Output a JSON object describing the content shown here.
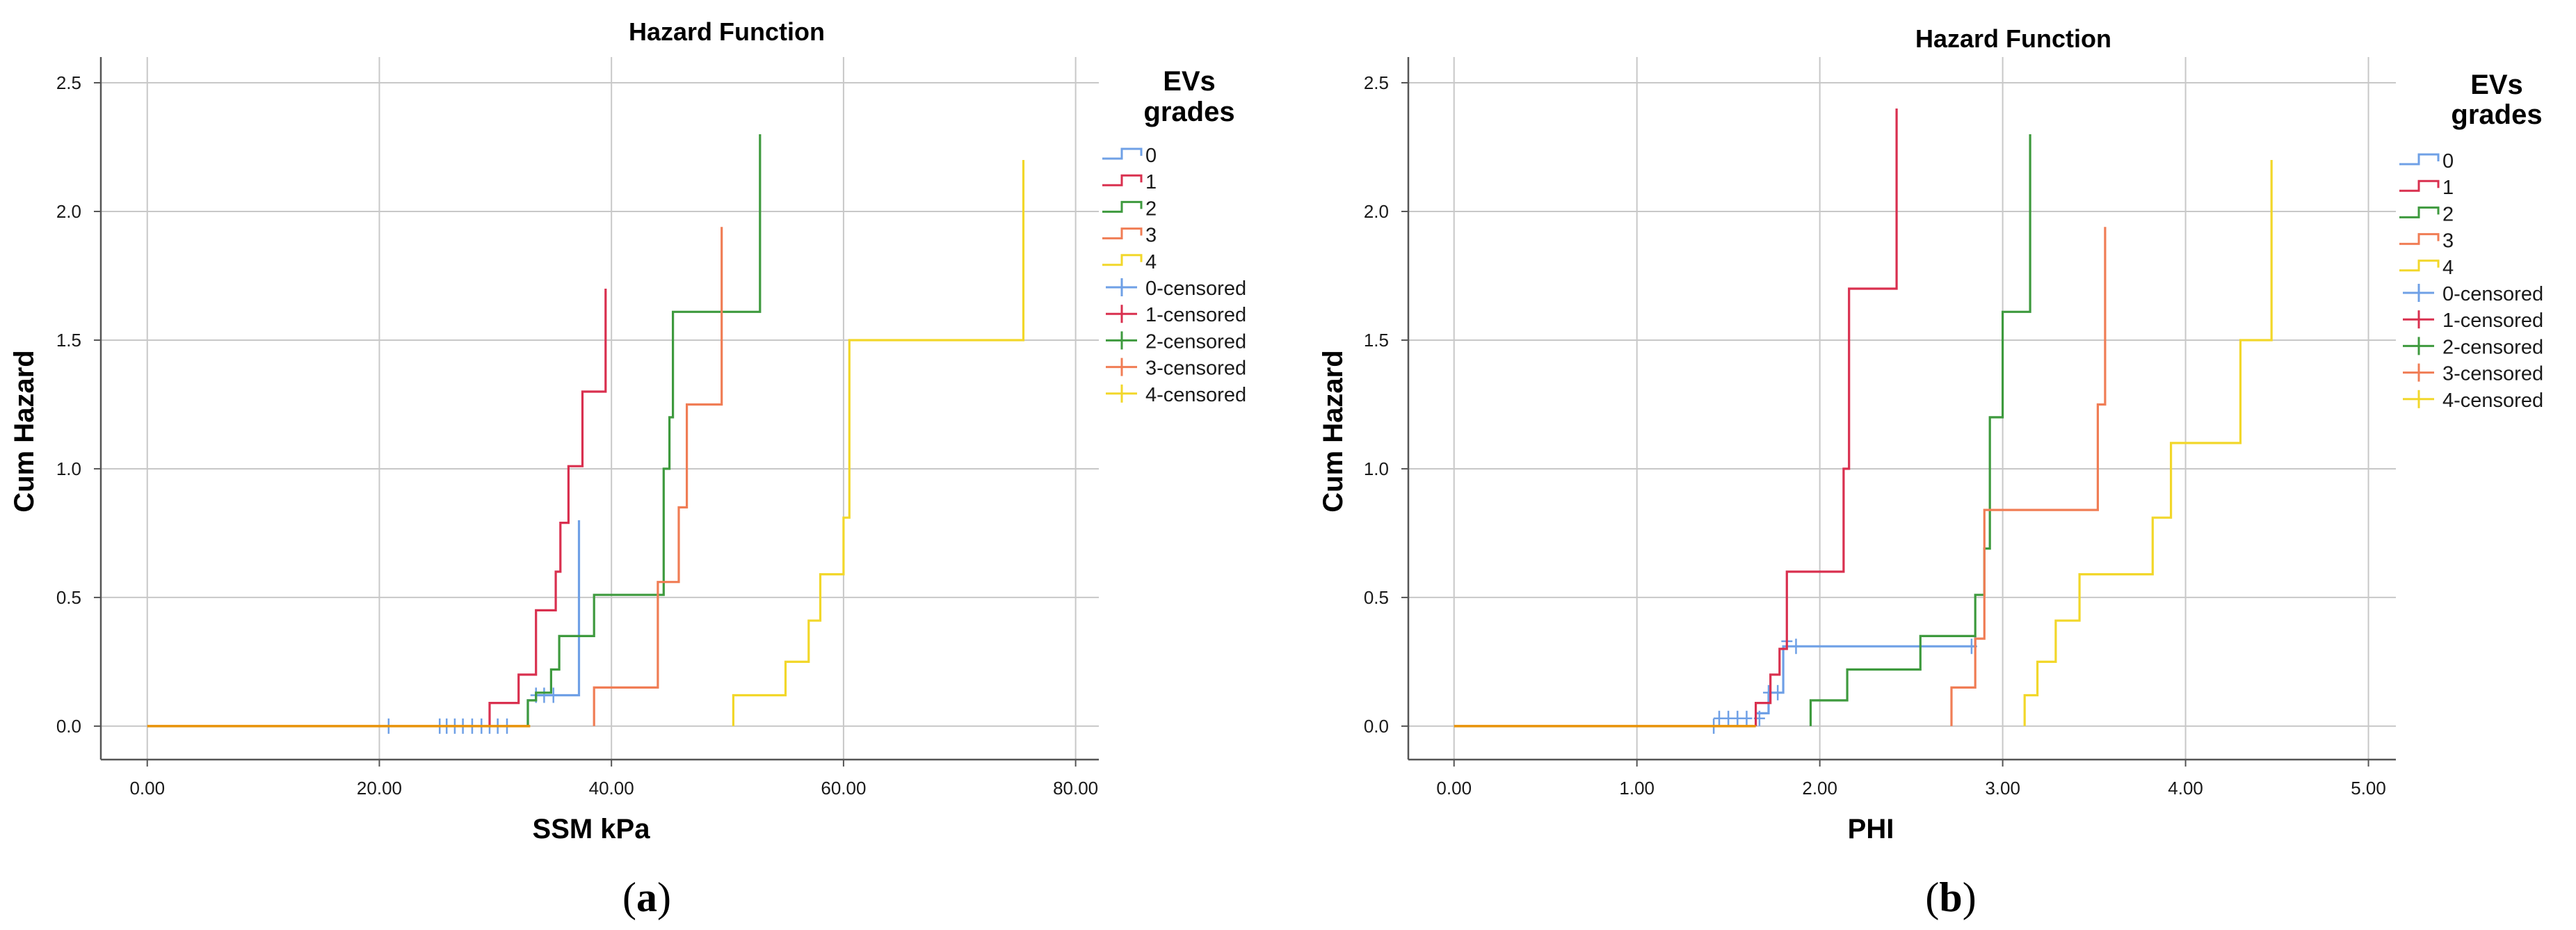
{
  "colors": {
    "grade_0": "#6fa0e6",
    "grade_1": "#d9304f",
    "grade_2": "#3e9a3e",
    "grade_3": "#f07d55",
    "grade_4": "#f2d72a",
    "overlay": "#e8930a",
    "grid": "#c8c8c8",
    "axis": "#555555"
  },
  "chart_data": [
    {
      "type": "line",
      "panel_label": "a",
      "title": "Hazard Function",
      "xlabel": "SSM kPa",
      "ylabel": "Cum Hazard",
      "xlim": [
        -4,
        82
      ],
      "ylim": [
        -0.13,
        2.6
      ],
      "x_ticks": [
        "0.00",
        "20.00",
        "40.00",
        "60.00",
        "80.00"
      ],
      "x_tick_values": [
        0,
        20,
        40,
        60,
        80
      ],
      "y_ticks": [
        "0.0",
        "0.5",
        "1.0",
        "1.5",
        "2.0",
        "2.5"
      ],
      "y_tick_values": [
        0,
        0.5,
        1.0,
        1.5,
        2.0,
        2.5
      ],
      "grid": true,
      "legend": {
        "title_line1": "EVs",
        "title_line2": "grades",
        "position": "right",
        "entries": [
          "0",
          "1",
          "2",
          "3",
          "4",
          "0-censored",
          "1-censored",
          "2-censored",
          "3-censored",
          "4-censored"
        ]
      },
      "baseline": {
        "x_start": 0,
        "x_end": 33
      },
      "series": [
        {
          "name": "0",
          "steps": [
            [
              32.8,
              0
            ],
            [
              32.8,
              0.1
            ],
            [
              33.5,
              0.1
            ],
            [
              33.5,
              0.12
            ],
            [
              37.2,
              0.12
            ],
            [
              37.2,
              0.8
            ]
          ],
          "censored": [
            [
              20.8,
              0
            ],
            [
              25.2,
              0
            ],
            [
              25.8,
              0
            ],
            [
              26.5,
              0
            ],
            [
              27.2,
              0
            ],
            [
              28.0,
              0
            ],
            [
              28.8,
              0
            ],
            [
              29.5,
              0
            ],
            [
              30.2,
              0
            ],
            [
              31.0,
              0
            ],
            [
              33.5,
              0.12
            ],
            [
              34.2,
              0.12
            ],
            [
              35.0,
              0.12
            ]
          ]
        },
        {
          "name": "1",
          "steps": [
            [
              29.5,
              0
            ],
            [
              29.5,
              0.09
            ],
            [
              32.0,
              0.09
            ],
            [
              32.0,
              0.2
            ],
            [
              33.5,
              0.2
            ],
            [
              33.5,
              0.45
            ],
            [
              35.2,
              0.45
            ],
            [
              35.2,
              0.6
            ],
            [
              35.6,
              0.6
            ],
            [
              35.6,
              0.79
            ],
            [
              36.3,
              0.79
            ],
            [
              36.3,
              1.01
            ],
            [
              37.5,
              1.01
            ],
            [
              37.5,
              1.3
            ],
            [
              39.5,
              1.3
            ],
            [
              39.5,
              1.7
            ]
          ],
          "censored": []
        },
        {
          "name": "2",
          "steps": [
            [
              32.8,
              0
            ],
            [
              32.8,
              0.1
            ],
            [
              33.5,
              0.1
            ],
            [
              33.5,
              0.13
            ],
            [
              34.8,
              0.13
            ],
            [
              34.8,
              0.22
            ],
            [
              35.5,
              0.22
            ],
            [
              35.5,
              0.35
            ],
            [
              38.5,
              0.35
            ],
            [
              38.5,
              0.51
            ],
            [
              44.5,
              0.51
            ],
            [
              44.5,
              1.0
            ],
            [
              45.0,
              1.0
            ],
            [
              45.0,
              1.2
            ],
            [
              45.3,
              1.2
            ],
            [
              45.3,
              1.61
            ],
            [
              52.8,
              1.61
            ],
            [
              52.8,
              2.3
            ]
          ],
          "censored": []
        },
        {
          "name": "3",
          "steps": [
            [
              38.5,
              0
            ],
            [
              38.5,
              0.15
            ],
            [
              44.0,
              0.15
            ],
            [
              44.0,
              0.56
            ],
            [
              45.8,
              0.56
            ],
            [
              45.8,
              0.85
            ],
            [
              46.5,
              0.85
            ],
            [
              46.5,
              1.25
            ],
            [
              49.5,
              1.25
            ],
            [
              49.5,
              1.94
            ]
          ],
          "censored": []
        },
        {
          "name": "4",
          "steps": [
            [
              50.5,
              0
            ],
            [
              50.5,
              0.12
            ],
            [
              55.0,
              0.12
            ],
            [
              55.0,
              0.25
            ],
            [
              57.0,
              0.25
            ],
            [
              57.0,
              0.41
            ],
            [
              58.0,
              0.41
            ],
            [
              58.0,
              0.59
            ],
            [
              60.0,
              0.59
            ],
            [
              60.0,
              0.81
            ],
            [
              60.5,
              0.81
            ],
            [
              60.5,
              1.5
            ],
            [
              75.5,
              1.5
            ],
            [
              75.5,
              2.2
            ]
          ],
          "censored": []
        }
      ]
    },
    {
      "type": "line",
      "panel_label": "b",
      "title": "Hazard Function",
      "xlabel": "PHI",
      "ylabel": "Cum Hazard",
      "xlim": [
        -0.25,
        5.15
      ],
      "ylim": [
        -0.13,
        2.6
      ],
      "x_ticks": [
        "0.00",
        "1.00",
        "2.00",
        "3.00",
        "4.00",
        "5.00"
      ],
      "x_tick_values": [
        0,
        1,
        2,
        3,
        4,
        5
      ],
      "y_ticks": [
        "0.0",
        "0.5",
        "1.0",
        "1.5",
        "2.0",
        "2.5"
      ],
      "y_tick_values": [
        0,
        0.5,
        1.0,
        1.5,
        2.0,
        2.5
      ],
      "grid": true,
      "legend": {
        "title_line1": "EVs",
        "title_line2": "grades",
        "position": "right",
        "entries": [
          "0",
          "1",
          "2",
          "3",
          "4",
          "0-censored",
          "1-censored",
          "2-censored",
          "3-censored",
          "4-censored"
        ]
      },
      "baseline": {
        "x_start": 0,
        "x_end": 1.65
      },
      "series": [
        {
          "name": "0",
          "steps": [
            [
              1.65,
              0
            ],
            [
              1.65,
              0.05
            ],
            [
              1.72,
              0.05
            ],
            [
              1.72,
              0.13
            ],
            [
              1.8,
              0.13
            ],
            [
              1.8,
              0.31
            ],
            [
              2.85,
              0.31
            ],
            [
              2.85,
              0.35
            ]
          ],
          "censored": [
            [
              1.42,
              0
            ],
            [
              1.45,
              0.03
            ],
            [
              1.5,
              0.03
            ],
            [
              1.55,
              0.03
            ],
            [
              1.6,
              0.03
            ],
            [
              1.67,
              0.03
            ],
            [
              1.72,
              0.13
            ],
            [
              1.77,
              0.13
            ],
            [
              1.82,
              0.33
            ],
            [
              1.87,
              0.31
            ],
            [
              2.83,
              0.31
            ]
          ]
        },
        {
          "name": "1",
          "steps": [
            [
              1.65,
              0
            ],
            [
              1.65,
              0.09
            ],
            [
              1.73,
              0.09
            ],
            [
              1.73,
              0.2
            ],
            [
              1.78,
              0.2
            ],
            [
              1.78,
              0.3
            ],
            [
              1.82,
              0.3
            ],
            [
              1.82,
              0.6
            ],
            [
              2.13,
              0.6
            ],
            [
              2.13,
              1.0
            ],
            [
              2.16,
              1.0
            ],
            [
              2.16,
              1.7
            ],
            [
              2.42,
              1.7
            ],
            [
              2.42,
              2.4
            ]
          ],
          "censored": []
        },
        {
          "name": "2",
          "steps": [
            [
              1.95,
              0
            ],
            [
              1.95,
              0.1
            ],
            [
              2.15,
              0.1
            ],
            [
              2.15,
              0.22
            ],
            [
              2.55,
              0.22
            ],
            [
              2.55,
              0.35
            ],
            [
              2.85,
              0.35
            ],
            [
              2.85,
              0.51
            ],
            [
              2.9,
              0.51
            ],
            [
              2.9,
              0.69
            ],
            [
              2.93,
              0.69
            ],
            [
              2.93,
              1.2
            ],
            [
              3.0,
              1.2
            ],
            [
              3.0,
              1.61
            ],
            [
              3.15,
              1.61
            ],
            [
              3.15,
              2.3
            ]
          ],
          "censored": []
        },
        {
          "name": "3",
          "steps": [
            [
              2.72,
              0
            ],
            [
              2.72,
              0.15
            ],
            [
              2.85,
              0.15
            ],
            [
              2.85,
              0.34
            ],
            [
              2.9,
              0.34
            ],
            [
              2.9,
              0.84
            ],
            [
              3.52,
              0.84
            ],
            [
              3.52,
              1.25
            ],
            [
              3.56,
              1.25
            ],
            [
              3.56,
              1.94
            ]
          ],
          "censored": []
        },
        {
          "name": "4",
          "steps": [
            [
              3.12,
              0
            ],
            [
              3.12,
              0.12
            ],
            [
              3.19,
              0.12
            ],
            [
              3.19,
              0.25
            ],
            [
              3.29,
              0.25
            ],
            [
              3.29,
              0.41
            ],
            [
              3.42,
              0.41
            ],
            [
              3.42,
              0.59
            ],
            [
              3.82,
              0.59
            ],
            [
              3.82,
              0.81
            ],
            [
              3.92,
              0.81
            ],
            [
              3.92,
              1.1
            ],
            [
              4.3,
              1.1
            ],
            [
              4.3,
              1.5
            ],
            [
              4.47,
              1.5
            ],
            [
              4.47,
              2.2
            ]
          ],
          "censored": []
        }
      ]
    }
  ]
}
